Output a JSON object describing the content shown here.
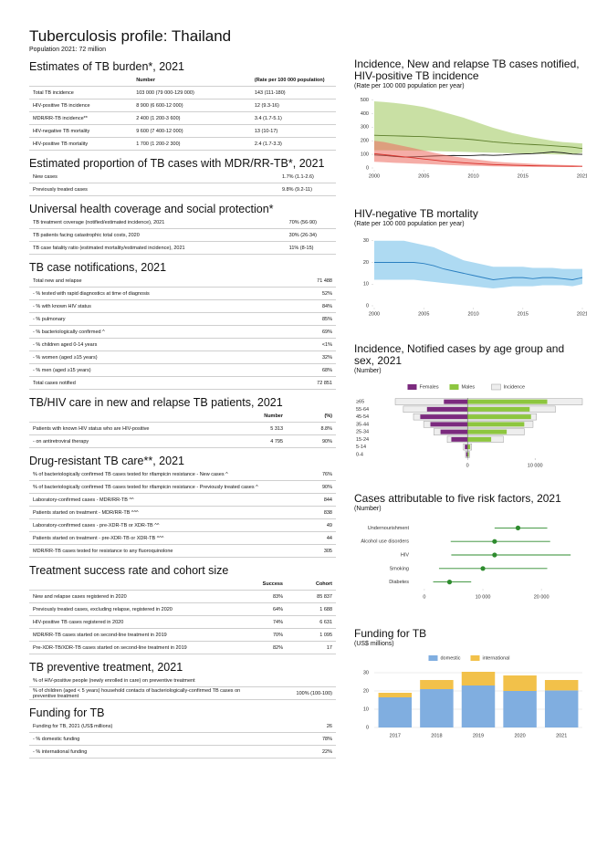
{
  "header": {
    "title": "Tuberculosis profile: Thailand",
    "subtitle": "Population 2021: 72 million"
  },
  "sections": [
    {
      "title": "Estimates of TB burden*, 2021",
      "columns": [
        "Number",
        "(Rate per 100 000 population)"
      ],
      "rows": [
        [
          "Total TB incidence",
          "103 000 (79 000-129 000)",
          "143 (111-180)"
        ],
        [
          "HIV-positive TB incidence",
          "8 900 (6 600-12 000)",
          "12 (9.3-16)"
        ],
        [
          "MDR/RR-TB incidence**",
          "2 400 (1 200-3 600)",
          "3.4 (1.7-5.1)"
        ],
        [
          "HIV-negative TB mortality",
          "9 600 (7 400-12 000)",
          "13 (10-17)"
        ],
        [
          "HIV-positive TB mortality",
          "1 700 (1 200-2 300)",
          "2.4 (1.7-3.3)"
        ]
      ]
    },
    {
      "title": "Estimated proportion of TB cases with MDR/RR-TB*, 2021",
      "rows": [
        [
          "New cases",
          "1.7% (1.1-2.6)"
        ],
        [
          "Previously treated cases",
          "9.8% (9.2-11)"
        ]
      ]
    },
    {
      "title": "Universal health coverage and social protection*",
      "rows": [
        [
          "TB treatment coverage (notified/estimated incidence), 2021",
          "70% (56-90)"
        ],
        [
          "TB patients facing catastrophic total costs, 2020",
          "30% (26-34)"
        ],
        [
          "TB case fatality ratio (estimated mortality/estimated incidence), 2021",
          "11% (8-15)"
        ]
      ]
    },
    {
      "title": "TB case notifications, 2021",
      "rows": [
        [
          "Total new and relapse",
          "71 488"
        ],
        [
          "- % tested with rapid diagnostics at time of diagnosis",
          "52%"
        ],
        [
          "- % with known HIV status",
          "84%"
        ],
        [
          "- % pulmonary",
          "85%"
        ],
        [
          "- % bacteriologically confirmed ^",
          "69%"
        ],
        [
          "- % children aged 0-14 years",
          "<1%"
        ],
        [
          "- % women (aged ≥15 years)",
          "32%"
        ],
        [
          "- % men (aged ≥15 years)",
          "68%"
        ],
        [
          "Total cases notified",
          "72 851"
        ]
      ]
    },
    {
      "title": "TB/HIV care in new and relapse TB patients, 2021",
      "columns": [
        "Number",
        "(%)"
      ],
      "rows": [
        [
          "Patients with known HIV status who are HIV-positive",
          "5 313",
          "8.8%"
        ],
        [
          "- on antiretroviral therapy",
          "4 795",
          "90%"
        ]
      ]
    },
    {
      "title": "Drug-resistant TB care**, 2021",
      "rows": [
        [
          "% of bacteriologically confirmed TB cases tested for rifampicin resistance - New cases ^",
          "76%"
        ],
        [
          "% of bacteriologically confirmed TB cases tested for rifampicin resistance - Previously treated cases ^",
          "90%"
        ],
        [
          "Laboratory-confirmed cases - MDR/RR-TB ^^",
          "844"
        ],
        [
          "Patients started on treatment - MDR/RR-TB ^^^",
          "838"
        ],
        [
          "Laboratory-confirmed cases - pre-XDR-TB or XDR-TB ^^",
          "49"
        ],
        [
          "Patients started on treatment - pre-XDR-TB or XDR-TB ^^^",
          "44"
        ],
        [
          "MDR/RR-TB cases tested for resistance to any fluoroquinolone",
          "305"
        ]
      ]
    },
    {
      "title": "Treatment success rate and cohort size",
      "columns": [
        "Success",
        "Cohort"
      ],
      "rows": [
        [
          "New and relapse cases registered in 2020",
          "83%",
          "85 837"
        ],
        [
          "Previously treated cases, excluding relapse, registered in 2020",
          "64%",
          "1 688"
        ],
        [
          "HIV-positive TB cases registered in 2020",
          "74%",
          "6 631"
        ],
        [
          "MDR/RR-TB cases started on second-line treatment in 2019",
          "70%",
          "1 095"
        ],
        [
          "Pre-XDR-TB/XDR-TB cases started on second-line treatment in 2019",
          "82%",
          "17"
        ]
      ]
    },
    {
      "title": "TB preventive treatment, 2021",
      "rows": [
        [
          "% of HIV-positive people (newly enrolled in care) on preventive treatment"
        ],
        [
          "% of children (aged < 5 years) household contacts of bacteriologically-confirmed TB cases on preventive treatment",
          "100% (100-100)"
        ]
      ]
    },
    {
      "title": "Funding for TB",
      "rows": [
        [
          "Funding for TB, 2021 (US$ millions)",
          "26"
        ],
        [
          "- % domestic funding",
          "78%"
        ],
        [
          "- % international funding",
          "22%"
        ]
      ]
    }
  ],
  "chart_data": [
    {
      "type": "line",
      "title": "Incidence, New and relapse TB cases notified, HIV-positive TB incidence",
      "subtitle": "(Rate per 100 000 population per year)",
      "x": [
        2000,
        2001,
        2002,
        2003,
        2004,
        2005,
        2006,
        2007,
        2008,
        2009,
        2010,
        2011,
        2012,
        2013,
        2014,
        2015,
        2016,
        2017,
        2018,
        2019,
        2020,
        2021
      ],
      "xlim": [
        2000,
        2021
      ],
      "xticks": [
        2000,
        2005,
        2010,
        2015,
        2021
      ],
      "ylim": [
        0,
        510
      ],
      "yticks": [
        0,
        100,
        200,
        300,
        400,
        500
      ],
      "series": [
        {
          "color": "#5c7d2a",
          "band_color": "#9cc65a",
          "values": [
            240,
            238,
            236,
            234,
            232,
            230,
            226,
            222,
            218,
            214,
            208,
            200,
            192,
            186,
            180,
            176,
            172,
            168,
            163,
            158,
            153,
            143
          ],
          "lower": [
            130,
            130,
            129,
            128,
            127,
            126,
            124,
            122,
            120,
            118,
            116,
            114,
            112,
            110,
            108,
            106,
            104,
            102,
            100,
            98,
            100,
            111
          ],
          "upper": [
            490,
            485,
            478,
            470,
            460,
            448,
            430,
            410,
            390,
            370,
            345,
            320,
            295,
            275,
            255,
            240,
            225,
            212,
            200,
            190,
            185,
            180
          ]
        },
        {
          "color": "#111111",
          "values": [
            95,
            92,
            85,
            80,
            82,
            85,
            88,
            90,
            92,
            90,
            92,
            95,
            93,
            95,
            100,
            103,
            105,
            110,
            118,
            112,
            102,
            100
          ]
        },
        {
          "color": "#d9302b",
          "band_color": "#ec6a5e",
          "values": [
            105,
            98,
            90,
            82,
            74,
            66,
            58,
            50,
            44,
            38,
            33,
            29,
            25,
            22,
            20,
            18,
            16,
            15,
            14,
            13,
            12,
            12
          ],
          "lower": [
            45,
            42,
            38,
            35,
            32,
            29,
            26,
            23,
            20,
            18,
            16,
            14,
            12,
            11,
            10,
            9,
            8,
            8,
            7.5,
            7,
            7,
            9.3
          ],
          "upper": [
            200,
            190,
            175,
            160,
            145,
            128,
            112,
            98,
            85,
            75,
            65,
            56,
            48,
            42,
            38,
            34,
            30,
            27,
            24,
            22,
            20,
            16
          ]
        }
      ]
    },
    {
      "type": "line",
      "title": "HIV-negative TB mortality",
      "subtitle": "(Rate per 100 000 population per year)",
      "x": [
        2000,
        2001,
        2002,
        2003,
        2004,
        2005,
        2006,
        2007,
        2008,
        2009,
        2010,
        2011,
        2012,
        2013,
        2014,
        2015,
        2016,
        2017,
        2018,
        2019,
        2020,
        2021
      ],
      "xlim": [
        2000,
        2021
      ],
      "xticks": [
        2000,
        2005,
        2010,
        2015,
        2021
      ],
      "ylim": [
        0,
        32
      ],
      "yticks": [
        0,
        10,
        20,
        30
      ],
      "series": [
        {
          "color": "#2a7fc0",
          "band_color": "#6cbbe8",
          "values": [
            20,
            20,
            20,
            20,
            20,
            19.5,
            18.5,
            17,
            16,
            15,
            14,
            13,
            12,
            12.5,
            13,
            13,
            12.5,
            13,
            13,
            12.5,
            12,
            13
          ],
          "lower": [
            12,
            12,
            12,
            12,
            12,
            11.5,
            11,
            10.5,
            10,
            9.5,
            9,
            8.5,
            8,
            8.5,
            9,
            9,
            9,
            9.5,
            9.5,
            9.5,
            9,
            10
          ],
          "upper": [
            30,
            30,
            30,
            30,
            29,
            28,
            27,
            25,
            23,
            21,
            20,
            19,
            18,
            18,
            18,
            18,
            17.5,
            17.5,
            17.5,
            17,
            17,
            17
          ]
        }
      ]
    },
    {
      "type": "pyramid",
      "title": "Incidence, Notified cases by age group and sex, 2021",
      "subtitle": "(Number)",
      "categories": [
        "≥65",
        "55-64",
        "45-54",
        "35-44",
        "25-34",
        "15-24",
        "5-14",
        "0-4"
      ],
      "xlim": [
        -13000,
        17000
      ],
      "xticks": [
        0,
        {
          "value": 10000,
          "label": "10 000"
        }
      ],
      "series": [
        {
          "name": "Females",
          "color": "#7b2a7e",
          "values": [
            3500,
            6000,
            7000,
            5500,
            4000,
            2400,
            400,
            200
          ]
        },
        {
          "name": "Males",
          "color": "#8dc63f",
          "values": [
            11800,
            9200,
            9400,
            8400,
            5800,
            3500,
            400,
            200
          ]
        }
      ],
      "incidence": {
        "name": "Incidence",
        "color": "#eeeeee",
        "females": [
          10700,
          9500,
          8000,
          6500,
          5000,
          3000,
          600,
          300
        ],
        "males": [
          17000,
          13000,
          10200,
          9700,
          8400,
          5300,
          600,
          300
        ]
      }
    },
    {
      "type": "dot_interval",
      "title": "Cases attributable to five risk factors, 2021",
      "subtitle": "(Number)",
      "categories": [
        "Undernourishment",
        "Alcohol use disorders",
        "HIV",
        "Smoking",
        "Diabetes"
      ],
      "color": "#2e8b2e",
      "values": [
        16000,
        12000,
        12000,
        10000,
        4300
      ],
      "lower": [
        12000,
        4500,
        4600,
        2500,
        1500
      ],
      "upper": [
        21000,
        21500,
        25000,
        21000,
        8000
      ],
      "xlim": [
        -12000,
        27000
      ],
      "xticks": [
        0,
        {
          "value": 10000,
          "label": "10 000"
        },
        {
          "value": 20000,
          "label": "20 000"
        }
      ]
    },
    {
      "type": "stacked_bar",
      "title": "Funding for TB",
      "subtitle": "(US$ millions)",
      "categories": [
        "2017",
        "2018",
        "2019",
        "2020",
        "2021"
      ],
      "ylim": [
        0,
        32
      ],
      "yticks": [
        0,
        10,
        20,
        30
      ],
      "grid": true,
      "series": [
        {
          "name": "domestic",
          "color": "#80aee0",
          "values": [
            16.5,
            21,
            23,
            20,
            20.3
          ]
        },
        {
          "name": "international",
          "color": "#f2c14a",
          "values": [
            2.5,
            5,
            7.5,
            8.5,
            5.7
          ]
        }
      ]
    }
  ]
}
